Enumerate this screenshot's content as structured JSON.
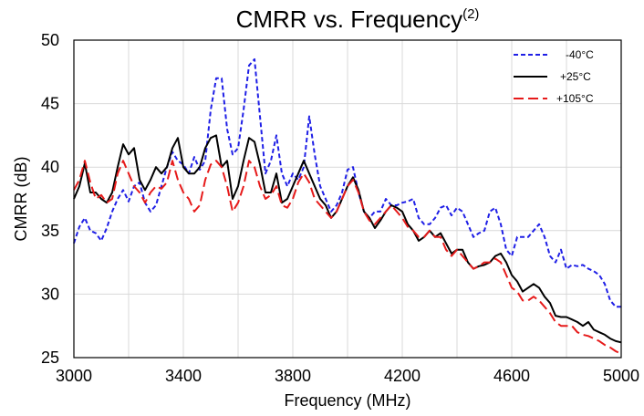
{
  "chart_data": {
    "type": "line",
    "title": "CMRR vs. Frequency",
    "title_superscript": "(2)",
    "xlabel": "Frequency (MHz)",
    "ylabel": "CMRR (dB)",
    "xlim": [
      3000,
      5000
    ],
    "ylim": [
      25,
      50
    ],
    "xticks": [
      3000,
      3400,
      3800,
      4200,
      4600,
      5000
    ],
    "yticks": [
      25,
      30,
      35,
      40,
      45,
      50
    ],
    "xtick_labels": [
      "3000",
      "3400",
      "3800",
      "4200",
      "4600",
      "5000"
    ],
    "ytick_labels": [
      "25",
      "30",
      "35",
      "40",
      "45",
      "50"
    ],
    "grid": true,
    "legend_position": "top-right",
    "x": [
      3000,
      3020,
      3040,
      3060,
      3080,
      3100,
      3120,
      3140,
      3160,
      3180,
      3200,
      3220,
      3240,
      3260,
      3280,
      3300,
      3320,
      3340,
      3360,
      3380,
      3400,
      3420,
      3440,
      3460,
      3480,
      3500,
      3520,
      3540,
      3560,
      3580,
      3600,
      3620,
      3640,
      3660,
      3680,
      3700,
      3720,
      3740,
      3760,
      3780,
      3800,
      3820,
      3840,
      3860,
      3880,
      3900,
      3920,
      3940,
      3960,
      3980,
      4000,
      4020,
      4040,
      4060,
      4080,
      4100,
      4120,
      4140,
      4160,
      4180,
      4200,
      4220,
      4240,
      4260,
      4280,
      4300,
      4320,
      4340,
      4360,
      4380,
      4400,
      4420,
      4440,
      4460,
      4480,
      4500,
      4520,
      4540,
      4560,
      4580,
      4600,
      4620,
      4640,
      4660,
      4680,
      4700,
      4720,
      4740,
      4760,
      4780,
      4800,
      4820,
      4840,
      4860,
      4880,
      4900,
      4920,
      4940,
      4960,
      4980,
      5000
    ],
    "series": [
      {
        "name": "-40°C",
        "color": "#1f1fe6",
        "dash": "5,3",
        "values": [
          34,
          35.3,
          36,
          35,
          34.8,
          34.2,
          35.2,
          36.5,
          37.5,
          38.2,
          37.3,
          38.5,
          38.8,
          37.2,
          36.5,
          37,
          38.5,
          40,
          41.2,
          40.5,
          40.2,
          39.5,
          40.8,
          39.8,
          40.5,
          44.5,
          47,
          47,
          43,
          41,
          41.5,
          44.5,
          48,
          48.5,
          44,
          39.5,
          40.5,
          42.5,
          39.5,
          38.5,
          39.5,
          39,
          40,
          44,
          41,
          38.5,
          37.5,
          36.5,
          37,
          38,
          39.8,
          40,
          38,
          36.5,
          36,
          36.5,
          36.5,
          37.5,
          37,
          37,
          37.2,
          37.3,
          37.5,
          36,
          35.5,
          35.5,
          36,
          36.8,
          37,
          36.2,
          36.8,
          36.5,
          35.5,
          34.5,
          34.8,
          35,
          36.5,
          36.8,
          35.5,
          33.5,
          33,
          34.5,
          34.5,
          34.5,
          35,
          35.5,
          34.5,
          33,
          32.5,
          33.5,
          32,
          32.3,
          32.2,
          32.3,
          32,
          31.8,
          31.5,
          30.8,
          29.5,
          29,
          29
        ]
      },
      {
        "name": "+25°C",
        "color": "#000000",
        "dash": "",
        "values": [
          37.5,
          38.5,
          40.3,
          38,
          38,
          37.5,
          37.2,
          38,
          40,
          41.8,
          41,
          41.5,
          39,
          38.2,
          39,
          40,
          39.5,
          40,
          41.5,
          42.3,
          40,
          39.5,
          39.5,
          40,
          41.5,
          42.3,
          42.5,
          40,
          40.5,
          37.5,
          38.5,
          40.5,
          42.3,
          42,
          40.2,
          38,
          38,
          39.5,
          37.2,
          37.5,
          38.5,
          39.5,
          40.5,
          39.5,
          38.5,
          37.5,
          37,
          36,
          36.5,
          37.5,
          38.5,
          39.2,
          38.2,
          36.5,
          36,
          35.2,
          35.8,
          36.5,
          37,
          36.8,
          36.5,
          35.5,
          35,
          34.2,
          34.5,
          35,
          34.5,
          34.8,
          34,
          33.2,
          33.5,
          33.5,
          32.5,
          32,
          32.2,
          32.3,
          32.5,
          33,
          33.2,
          32.5,
          31.5,
          31,
          30.2,
          30.5,
          30.8,
          30.5,
          29.8,
          29.3,
          28.3,
          28.2,
          28.2,
          28,
          27.8,
          27.5,
          27.8,
          27.2,
          27,
          26.8,
          26.5,
          26.3,
          26.2
        ]
      },
      {
        "name": "+105°C",
        "color": "#e61a1a",
        "dash": "11,5",
        "values": [
          38.2,
          39,
          40.5,
          38.8,
          37.5,
          37.8,
          37.2,
          37.5,
          39.5,
          40.5,
          39.5,
          38.5,
          38,
          37.2,
          38,
          38.5,
          38.3,
          38.8,
          40.5,
          39,
          38,
          37.5,
          36.5,
          37,
          39,
          40.2,
          40.5,
          40,
          38.5,
          36.5,
          37.2,
          38.5,
          40.5,
          40,
          38.5,
          37.5,
          37.8,
          38.5,
          37,
          36.8,
          37.5,
          38.8,
          39.5,
          38.8,
          37.5,
          37,
          36.5,
          36,
          36.5,
          37.5,
          38.5,
          39,
          38,
          36.5,
          35.8,
          35.5,
          36,
          36.5,
          37,
          36.5,
          36,
          35.3,
          35,
          34.5,
          34.5,
          35,
          34.5,
          34.5,
          33.5,
          33,
          33.5,
          33,
          32.5,
          32,
          32.2,
          32.5,
          32.5,
          32.8,
          32.5,
          31.5,
          30.5,
          30.2,
          29.5,
          29.5,
          29.8,
          29.5,
          29,
          28.5,
          27.8,
          27.5,
          27.5,
          27.5,
          27,
          26.8,
          26.7,
          26.5,
          26.3,
          26,
          25.8,
          25.5,
          25.3
        ]
      }
    ]
  }
}
